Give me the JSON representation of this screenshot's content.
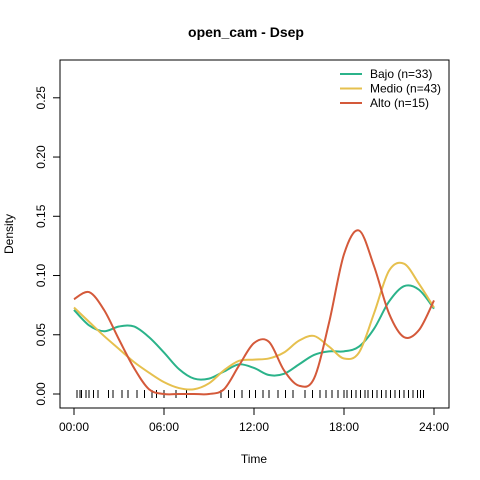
{
  "chart_data": {
    "type": "line",
    "title": "open_cam - Dsep",
    "xlabel": "Time",
    "ylabel": "Density",
    "xlim": [
      0,
      24
    ],
    "ylim": [
      0,
      0.28
    ],
    "x_ticks": [
      "00:00",
      "06:00",
      "12:00",
      "18:00",
      "24:00"
    ],
    "y_ticks": [
      "0.00",
      "0.05",
      "0.10",
      "0.15",
      "0.20",
      "0.25"
    ],
    "grid": false,
    "legend_position": "top-right",
    "series": [
      {
        "name": "Bajo (n=33)",
        "color": "#2bb38a",
        "x": [
          0,
          1,
          2,
          3,
          4,
          5,
          6,
          7,
          8,
          9,
          10,
          11,
          12,
          13,
          14,
          15,
          16,
          17,
          18,
          19,
          20,
          21,
          22,
          23,
          24
        ],
        "y": [
          0.071,
          0.058,
          0.053,
          0.057,
          0.057,
          0.048,
          0.035,
          0.021,
          0.013,
          0.013,
          0.019,
          0.025,
          0.022,
          0.016,
          0.017,
          0.025,
          0.033,
          0.036,
          0.036,
          0.04,
          0.055,
          0.078,
          0.091,
          0.088,
          0.072
        ]
      },
      {
        "name": "Medio (n=43)",
        "color": "#e6c04e",
        "x": [
          0,
          1,
          2,
          3,
          4,
          5,
          6,
          7,
          8,
          9,
          10,
          11,
          12,
          13,
          14,
          15,
          16,
          17,
          18,
          19,
          20,
          21,
          22,
          23,
          24
        ],
        "y": [
          0.073,
          0.061,
          0.049,
          0.038,
          0.027,
          0.018,
          0.01,
          0.005,
          0.004,
          0.009,
          0.02,
          0.028,
          0.029,
          0.03,
          0.035,
          0.045,
          0.049,
          0.04,
          0.03,
          0.035,
          0.068,
          0.104,
          0.11,
          0.093,
          0.073
        ]
      },
      {
        "name": "Alto (n=15)",
        "color": "#d4593a",
        "x": [
          0,
          1,
          2,
          3,
          4,
          5,
          6,
          7,
          8,
          9,
          10,
          11,
          12,
          13,
          14,
          15,
          16,
          17,
          18,
          19,
          20,
          21,
          22,
          23,
          24
        ],
        "y": [
          0.08,
          0.086,
          0.071,
          0.046,
          0.022,
          0.004,
          0.0,
          0.0,
          0.0,
          0.0,
          0.004,
          0.024,
          0.043,
          0.044,
          0.02,
          0.007,
          0.013,
          0.06,
          0.118,
          0.138,
          0.108,
          0.068,
          0.048,
          0.054,
          0.079
        ]
      }
    ],
    "rug_times": [
      0.2,
      0.4,
      0.5,
      0.8,
      1.0,
      1.3,
      1.6,
      2.3,
      2.6,
      3.2,
      3.6,
      4.2,
      4.7,
      5.2,
      5.5,
      6.0,
      6.8,
      7.5,
      9.8,
      10.3,
      10.7,
      11.2,
      11.7,
      12.1,
      12.6,
      13.0,
      13.6,
      14.1,
      14.6,
      15.4,
      15.9,
      16.4,
      16.8,
      17.2,
      17.6,
      18.0,
      18.2,
      18.5,
      18.8,
      19.1,
      19.4,
      19.6,
      19.9,
      20.2,
      20.5,
      20.8,
      21.1,
      21.4,
      21.7,
      22.0,
      22.3,
      22.6,
      22.9,
      23.1,
      23.3
    ]
  }
}
